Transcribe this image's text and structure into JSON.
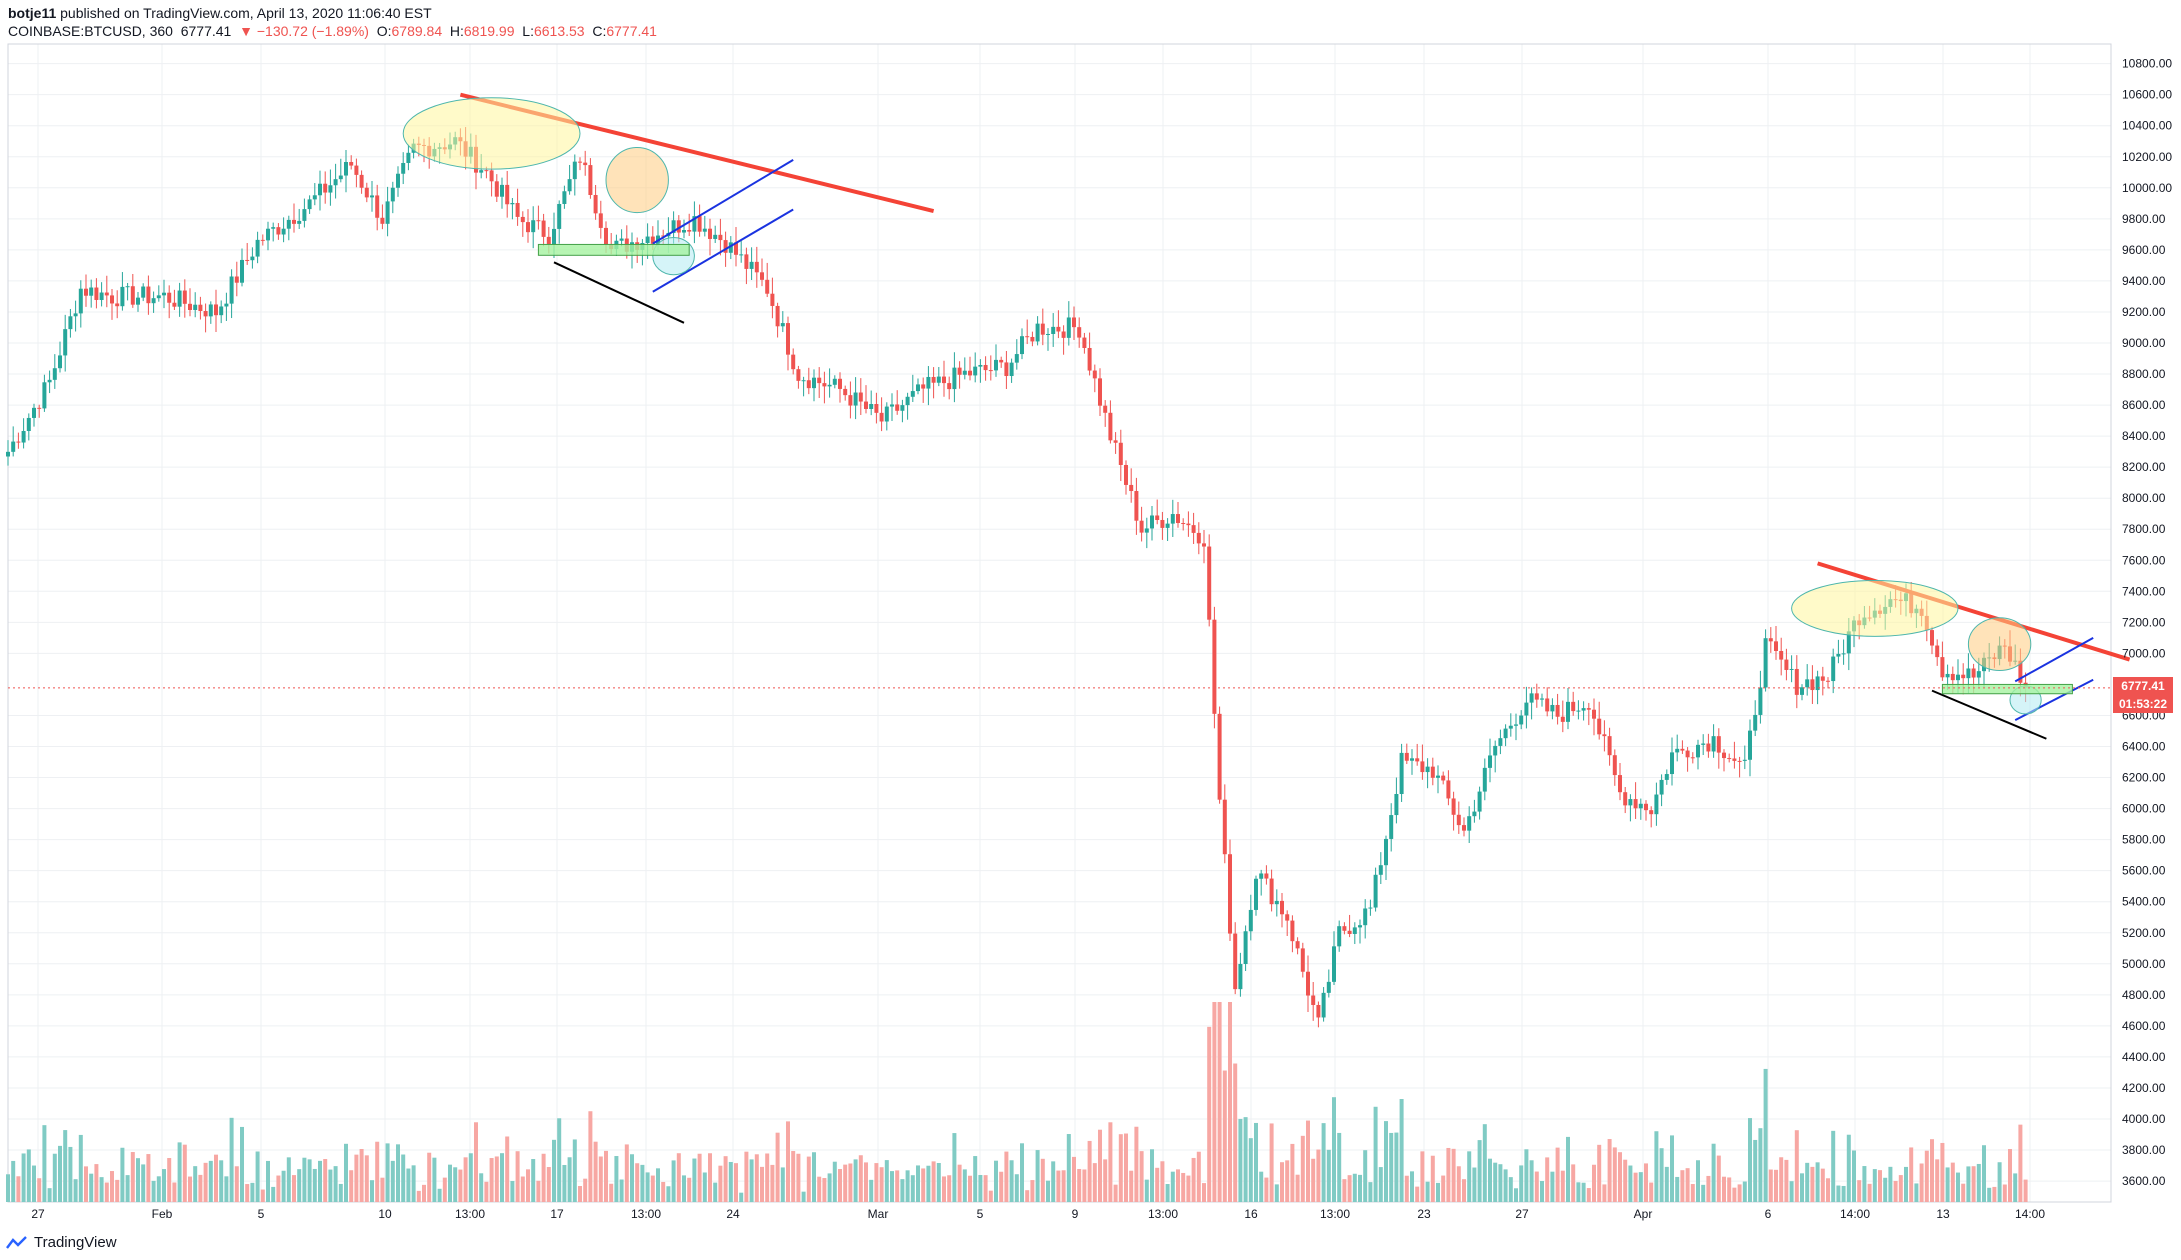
{
  "header": {
    "user": "botje11",
    "published": " published on TradingView.com, April 13, 2020 11:06:40 EST",
    "symbol": "COINBASE:BTCUSD, 360",
    "last": "6777.41",
    "change": "▼ −130.72 (−1.89%)",
    "o_label": "O:",
    "o_value": "6789.84",
    "h_label": "H:",
    "h_value": "6819.99",
    "l_label": "L:",
    "l_value": "6613.53",
    "c_label": "C:",
    "c_value": "6777.41"
  },
  "footer": {
    "brand": "TradingView"
  },
  "price_tags": {
    "last_price": "6777.41",
    "countdown": "01:53:22"
  },
  "colors": {
    "up": "#26a69a",
    "down": "#ef5350",
    "vol_up": "#80cbc4",
    "vol_down": "#f7a7a3",
    "grid": "#eef0f3",
    "trend_red": "#f44336",
    "channel_blue": "#1a33e0",
    "support_black": "#000000",
    "zone_yellow": "#fff59d",
    "zone_orange": "#ffcc80",
    "zone_cyan": "#b2ebf2",
    "zone_green": "#a5f2a0"
  },
  "chart_data": {
    "type": "candlestick",
    "symbol": "COINBASE:BTCUSD",
    "interval": "360",
    "ylim": [
      3500,
      10900
    ],
    "y_ticks": [
      "10800.00",
      "10600.00",
      "10400.00",
      "10200.00",
      "10000.00",
      "9800.00",
      "9600.00",
      "9400.00",
      "9200.00",
      "9000.00",
      "8800.00",
      "8600.00",
      "8400.00",
      "8200.00",
      "8000.00",
      "7800.00",
      "7600.00",
      "7400.00",
      "7200.00",
      "7000.00",
      "6600.00",
      "6400.00",
      "6200.00",
      "6000.00",
      "5800.00",
      "5600.00",
      "5400.00",
      "5200.00",
      "5000.00",
      "4800.00",
      "4600.00",
      "4400.00",
      "4200.00",
      "4000.00",
      "3800.00",
      "3600.00"
    ],
    "x_ticks": [
      "27",
      "Feb",
      "5",
      "10",
      "13:00",
      "17",
      "13:00",
      "24",
      "Mar",
      "5",
      "9",
      "13:00",
      "16",
      "13:00",
      "23",
      "27",
      "Apr",
      "6",
      "14:00",
      "13",
      "14:00"
    ],
    "grid": true,
    "anchors": [
      {
        "i": 0,
        "p": 8300
      },
      {
        "i": 8,
        "p": 8750
      },
      {
        "i": 14,
        "p": 9350
      },
      {
        "i": 20,
        "p": 9300
      },
      {
        "i": 30,
        "p": 9300
      },
      {
        "i": 40,
        "p": 9200
      },
      {
        "i": 48,
        "p": 9650
      },
      {
        "i": 58,
        "p": 9900
      },
      {
        "i": 66,
        "p": 10150
      },
      {
        "i": 72,
        "p": 9800
      },
      {
        "i": 78,
        "p": 10250
      },
      {
        "i": 86,
        "p": 10300
      },
      {
        "i": 92,
        "p": 10100
      },
      {
        "i": 98,
        "p": 9800
      },
      {
        "i": 104,
        "p": 9700
      },
      {
        "i": 110,
        "p": 10200
      },
      {
        "i": 116,
        "p": 9600
      },
      {
        "i": 124,
        "p": 9700
      },
      {
        "i": 132,
        "p": 9800
      },
      {
        "i": 138,
        "p": 9650
      },
      {
        "i": 146,
        "p": 9350
      },
      {
        "i": 152,
        "p": 8800
      },
      {
        "i": 160,
        "p": 8700
      },
      {
        "i": 168,
        "p": 8500
      },
      {
        "i": 176,
        "p": 8700
      },
      {
        "i": 184,
        "p": 8800
      },
      {
        "i": 192,
        "p": 8850
      },
      {
        "i": 198,
        "p": 9100
      },
      {
        "i": 206,
        "p": 9100
      },
      {
        "i": 212,
        "p": 8400
      },
      {
        "i": 218,
        "p": 7800
      },
      {
        "i": 224,
        "p": 7900
      },
      {
        "i": 230,
        "p": 7750
      },
      {
        "i": 233,
        "p": 6050
      },
      {
        "i": 236,
        "p": 4850
      },
      {
        "i": 240,
        "p": 5600
      },
      {
        "i": 246,
        "p": 5300
      },
      {
        "i": 252,
        "p": 4600
      },
      {
        "i": 256,
        "p": 5200
      },
      {
        "i": 262,
        "p": 5350
      },
      {
        "i": 268,
        "p": 6300
      },
      {
        "i": 274,
        "p": 6250
      },
      {
        "i": 280,
        "p": 5850
      },
      {
        "i": 286,
        "p": 6400
      },
      {
        "i": 292,
        "p": 6700
      },
      {
        "i": 298,
        "p": 6600
      },
      {
        "i": 304,
        "p": 6700
      },
      {
        "i": 310,
        "p": 6100
      },
      {
        "i": 316,
        "p": 6000
      },
      {
        "i": 320,
        "p": 6350
      },
      {
        "i": 328,
        "p": 6450
      },
      {
        "i": 334,
        "p": 6250
      },
      {
        "i": 338,
        "p": 7050
      },
      {
        "i": 344,
        "p": 6800
      },
      {
        "i": 350,
        "p": 6850
      },
      {
        "i": 356,
        "p": 7250
      },
      {
        "i": 362,
        "p": 7350
      },
      {
        "i": 368,
        "p": 7300
      },
      {
        "i": 372,
        "p": 6900
      },
      {
        "i": 378,
        "p": 6850
      },
      {
        "i": 384,
        "p": 7050
      },
      {
        "i": 388,
        "p": 6777
      }
    ],
    "annotations": [
      {
        "kind": "trendline",
        "color": "red",
        "from": {
          "i": 87,
          "p": 10600
        },
        "to": {
          "i": 178,
          "p": 9850
        }
      },
      {
        "kind": "trendline",
        "color": "red",
        "from": {
          "i": 348,
          "p": 7580
        },
        "to": {
          "i": 408,
          "p": 6960
        }
      },
      {
        "kind": "channel",
        "color": "blue",
        "lines": [
          [
            {
              "i": 124,
              "p": 9640
            },
            {
              "i": 151,
              "p": 10180
            }
          ],
          [
            {
              "i": 124,
              "p": 9330
            },
            {
              "i": 151,
              "p": 9860
            }
          ]
        ]
      },
      {
        "kind": "channel",
        "color": "blue",
        "lines": [
          [
            {
              "i": 386,
              "p": 6820
            },
            {
              "i": 401,
              "p": 7100
            }
          ],
          [
            {
              "i": 386,
              "p": 6570
            },
            {
              "i": 401,
              "p": 6830
            }
          ]
        ]
      },
      {
        "kind": "line",
        "color": "black",
        "from": {
          "i": 105,
          "p": 9520
        },
        "to": {
          "i": 130,
          "p": 9130
        }
      },
      {
        "kind": "line",
        "color": "black",
        "from": {
          "i": 370,
          "p": 6760
        },
        "to": {
          "i": 392,
          "p": 6450
        }
      },
      {
        "kind": "ellipse",
        "color": "yellow",
        "center": {
          "i": 93,
          "p": 10350
        },
        "rx_i": 17,
        "ry_p": 230
      },
      {
        "kind": "ellipse",
        "color": "orange",
        "center": {
          "i": 121,
          "p": 10050
        },
        "rx_i": 6,
        "ry_p": 210
      },
      {
        "kind": "ellipse",
        "color": "cyan",
        "center": {
          "i": 128,
          "p": 9560
        },
        "rx_i": 4,
        "ry_p": 120
      },
      {
        "kind": "ellipse",
        "color": "yellow",
        "center": {
          "i": 359,
          "p": 7290
        },
        "rx_i": 16,
        "ry_p": 180
      },
      {
        "kind": "ellipse",
        "color": "orange",
        "center": {
          "i": 383,
          "p": 7060
        },
        "rx_i": 6,
        "ry_p": 170
      },
      {
        "kind": "ellipse",
        "color": "cyan",
        "center": {
          "i": 388,
          "p": 6700
        },
        "rx_i": 3,
        "ry_p": 90
      },
      {
        "kind": "zone",
        "color": "green",
        "from": {
          "i": 102,
          "p": 9635
        },
        "to": {
          "i": 131,
          "p": 9565
        }
      },
      {
        "kind": "zone",
        "color": "green",
        "from": {
          "i": 372,
          "p": 6800
        },
        "to": {
          "i": 397,
          "p": 6740
        }
      }
    ]
  }
}
